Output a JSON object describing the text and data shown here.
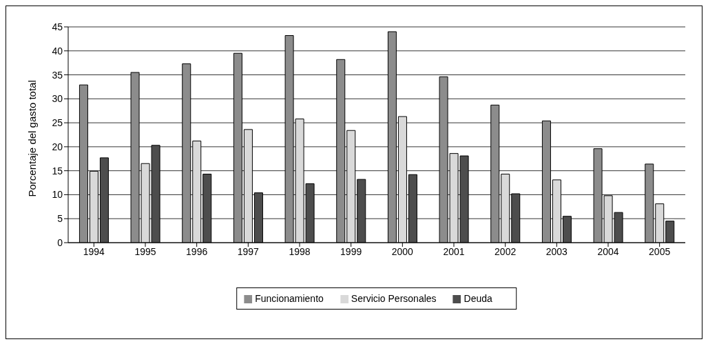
{
  "chart_data": {
    "type": "bar",
    "ylabel": "Porcentaje del gasto total",
    "categories": [
      "1994",
      "1995",
      "1996",
      "1997",
      "1998",
      "1999",
      "2000",
      "2001",
      "2002",
      "2003",
      "2004",
      "2005"
    ],
    "series": [
      {
        "name": "Funcionamiento",
        "color": "#8c8c8c",
        "values": [
          32.9,
          35.5,
          37.3,
          39.5,
          43.2,
          38.2,
          44.0,
          34.6,
          28.7,
          25.4,
          19.6,
          16.4
        ]
      },
      {
        "name": "Servicio Personales",
        "color": "#d9d9d9",
        "values": [
          14.9,
          16.5,
          21.2,
          23.6,
          25.8,
          23.4,
          26.3,
          18.6,
          14.3,
          13.1,
          9.8,
          8.1
        ]
      },
      {
        "name": "Deuda",
        "color": "#4d4d4d",
        "values": [
          17.7,
          20.3,
          14.3,
          10.4,
          12.3,
          13.2,
          14.2,
          18.1,
          10.2,
          5.5,
          6.3,
          4.5
        ]
      }
    ],
    "ylim": [
      0,
      45
    ],
    "yticks": [
      0,
      5,
      10,
      15,
      20,
      25,
      30,
      35,
      40,
      45
    ],
    "grid": "y",
    "legend": "bottom"
  }
}
